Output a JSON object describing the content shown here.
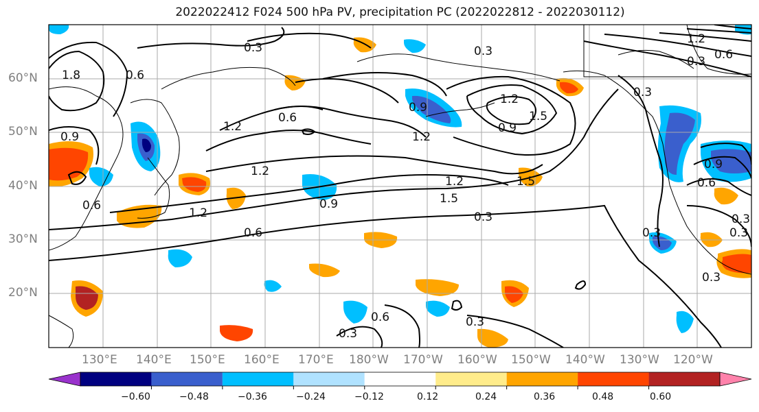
{
  "title": "2022022412 F024 500 hPa PV, precipitation PC (2022022812 - 2022030112)",
  "lat_labels": [
    "60°N",
    "50°N",
    "40°N",
    "30°N",
    "20°N"
  ],
  "lon_labels": [
    "130°E",
    "140°E",
    "150°E",
    "160°E",
    "170°E",
    "180°W",
    "170°W",
    "160°W",
    "150°W",
    "140°W",
    "130°W",
    "120°W"
  ],
  "colorbar": {
    "labels": [
      "−0.60",
      "−0.48",
      "−0.36",
      "−0.24",
      "−0.12",
      "0.12",
      "0.24",
      "0.36",
      "0.48",
      "0.60"
    ],
    "colors": [
      "#9932cc",
      "#000080",
      "#3a5fcd",
      "#00bfff",
      "#b0e2ff",
      "#ffffff",
      "#ffec8b",
      "#ffa500",
      "#ff4500",
      "#b22222",
      "#ff82ab"
    ]
  },
  "contour_labels": [
    "0.3",
    "0.6",
    "1.2",
    "0.6",
    "0.3",
    "0.9",
    "1.2",
    "1.2",
    "1.5",
    "0.9",
    "1.2",
    "0.6",
    "1.5",
    "0.9",
    "1.2",
    "1.5",
    "0.6",
    "0.9",
    "1.2",
    "0.3",
    "0.3",
    "0.3",
    "0.6",
    "0.3",
    "0.3",
    "0.3",
    "0.3",
    "0.3",
    "1.8",
    "0.6",
    "0.9",
    "0.6",
    "0.3",
    "1.2"
  ]
}
